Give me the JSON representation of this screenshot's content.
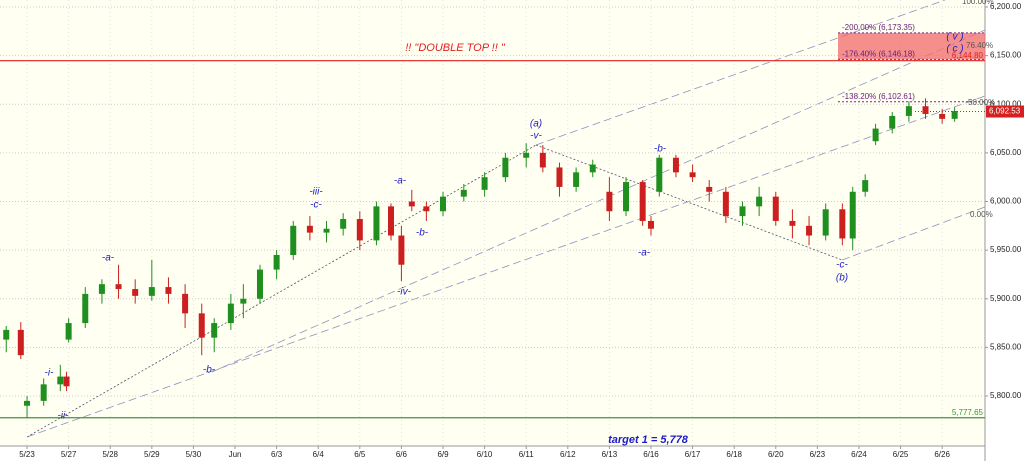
{
  "chart_data": {
    "type": "candlestick",
    "x": [
      -0.5,
      -0.15,
      0.0,
      0.4,
      0.8,
      0.95,
      1.0,
      1.4,
      1.8,
      2.2,
      2.6,
      3.0,
      3.4,
      3.8,
      4.2,
      4.5,
      4.9,
      5.2,
      5.6,
      6.0,
      6.4,
      6.8,
      7.2,
      7.6,
      8.0,
      8.4,
      8.75,
      9.0,
      9.25,
      9.6,
      10.0,
      10.5,
      11.0,
      11.5,
      12.0,
      12.4,
      12.8,
      13.2,
      13.6,
      14.0,
      14.4,
      14.8,
      15.0,
      15.2,
      15.6,
      16.0,
      16.4,
      16.8,
      17.2,
      17.6,
      18.0,
      18.4,
      18.8,
      19.2,
      19.6,
      19.85,
      20.15,
      20.4,
      20.8,
      21.2,
      21.6,
      22.0,
      22.3
    ],
    "open": [
      5858,
      5868,
      5790,
      5795,
      5812,
      5820,
      5858,
      5875,
      5905,
      5915,
      5910,
      5903,
      5912,
      5905,
      5885,
      5860,
      5875,
      5895,
      5900,
      5930,
      5945,
      5975,
      5968,
      5972,
      5982,
      5960,
      5995,
      5965,
      6000,
      5995,
      5990,
      6005,
      6012,
      6025,
      6045,
      6050,
      6035,
      6015,
      6030,
      6010,
      5990,
      6020,
      5980,
      6010,
      6045,
      6030,
      6015,
      6010,
      5985,
      5995,
      6005,
      5980,
      5975,
      5965,
      5992,
      5962,
      6010,
      6062,
      6075,
      6088,
      6098,
      6090,
      6085
    ],
    "high": [
      5872,
      5876,
      5800,
      5818,
      5832,
      5825,
      5880,
      5912,
      5920,
      5935,
      5920,
      5940,
      5922,
      5915,
      5895,
      5880,
      5905,
      5915,
      5935,
      5950,
      5980,
      5985,
      5980,
      5988,
      5990,
      6000,
      5998,
      5975,
      6012,
      6000,
      6010,
      6018,
      6030,
      6050,
      6060,
      6058,
      6040,
      6035,
      6043,
      6025,
      6025,
      6022,
      5985,
      6048,
      6048,
      6038,
      6022,
      6015,
      6000,
      6015,
      6010,
      5992,
      5985,
      5998,
      5998,
      6015,
      6028,
      6080,
      6092,
      6103,
      6106,
      6095,
      6097
    ],
    "low": [
      5845,
      5838,
      5777,
      5790,
      5805,
      5805,
      5855,
      5870,
      5895,
      5900,
      5895,
      5898,
      5895,
      5870,
      5842,
      5845,
      5868,
      5880,
      5895,
      5920,
      5940,
      5960,
      5958,
      5965,
      5950,
      5955,
      5960,
      5918,
      5990,
      5980,
      5985,
      6000,
      6005,
      6020,
      6035,
      6030,
      6005,
      6010,
      6025,
      5980,
      5985,
      5975,
      5965,
      6005,
      6025,
      6020,
      6000,
      5978,
      5975,
      5985,
      5975,
      5962,
      5955,
      5960,
      5955,
      5950,
      6005,
      6058,
      6070,
      6082,
      6085,
      6080,
      6082
    ],
    "close": [
      5868,
      5842,
      5795,
      5812,
      5820,
      5810,
      5875,
      5905,
      5915,
      5910,
      5903,
      5912,
      5905,
      5885,
      5860,
      5875,
      5895,
      5900,
      5930,
      5945,
      5975,
      5968,
      5972,
      5982,
      5960,
      5995,
      5965,
      5935,
      5995,
      5990,
      6005,
      6012,
      6025,
      6045,
      6050,
      6035,
      6015,
      6030,
      6038,
      5990,
      6020,
      5980,
      5972,
      6045,
      6030,
      6025,
      6010,
      5985,
      5995,
      6005,
      5980,
      5975,
      5965,
      5992,
      5962,
      6010,
      6022,
      6075,
      6088,
      6098,
      6090,
      6085,
      6093
    ],
    "up_color": "#1f8f1f",
    "down_color": "#cc2020",
    "xlim": [
      -0.65,
      23.03
    ],
    "ylim": [
      5748.6,
      6207.2
    ],
    "xticks": [
      {
        "value": 0,
        "label": "5/23"
      },
      {
        "value": 1,
        "label": "5/27"
      },
      {
        "value": 2,
        "label": "5/28"
      },
      {
        "value": 3,
        "label": "5/29"
      },
      {
        "value": 4,
        "label": "5/30"
      },
      {
        "value": 5,
        "label": "Jun"
      },
      {
        "value": 6,
        "label": "6/3"
      },
      {
        "value": 7,
        "label": "6/4"
      },
      {
        "value": 8,
        "label": "6/5"
      },
      {
        "value": 9,
        "label": "6/6"
      },
      {
        "value": 10,
        "label": "6/9"
      },
      {
        "value": 11,
        "label": "6/10"
      },
      {
        "value": 12,
        "label": "6/11"
      },
      {
        "value": 13,
        "label": "6/12"
      },
      {
        "value": 14,
        "label": "6/13"
      },
      {
        "value": 15,
        "label": "6/16"
      },
      {
        "value": 16,
        "label": "6/17"
      },
      {
        "value": 17,
        "label": "6/18"
      },
      {
        "value": 18,
        "label": "6/20"
      },
      {
        "value": 19,
        "label": "6/23"
      },
      {
        "value": 20,
        "label": "6/24"
      },
      {
        "value": 21,
        "label": "6/25"
      },
      {
        "value": 22,
        "label": "6/26"
      }
    ],
    "yticks": [
      {
        "value": 5800,
        "label": "5,800.00"
      },
      {
        "value": 5850,
        "label": "5,850.00"
      },
      {
        "value": 5900,
        "label": "5,900.00"
      },
      {
        "value": 5950,
        "label": "5,950.00"
      },
      {
        "value": 6000,
        "label": "6,000.00"
      },
      {
        "value": 6050,
        "label": "6,050.00"
      },
      {
        "value": 6100,
        "label": "6,100.00"
      },
      {
        "value": 6150,
        "label": "6,150.00"
      },
      {
        "value": 6200,
        "label": "6,200.00"
      }
    ],
    "grid": true,
    "last_price": {
      "value": 6092.53,
      "label": "6,092.53"
    },
    "levels": [
      {
        "value": 6144.8,
        "label": "6,144.80",
        "color": "#e02020"
      },
      {
        "value": 5777.65,
        "label": "5,777.65",
        "color": "#3a9a3a"
      }
    ],
    "fib_levels": [
      {
        "value": 6173.35,
        "label": "-200.00% (6,173.35)"
      },
      {
        "value": 6146.18,
        "label": "-176.40% (6,146.18)"
      },
      {
        "value": 6102.61,
        "label": "-138.20% (6,102.61)"
      }
    ],
    "channel_labels": [
      "100.00%",
      "76.40%",
      "50.00%",
      "0.00%"
    ],
    "annotations": [
      "!! \"DOUBLE TOP !! \"",
      "target 1 = 5,778"
    ],
    "wave_labels": [
      "-i-",
      "-ii-",
      "-a-",
      "-b-",
      "-iii-",
      "-c-",
      "-a-",
      "-b-",
      "-iv-",
      "(a)",
      "-v-",
      "-b-",
      "-a-",
      "-c-",
      "(b)",
      "( v )",
      "( c )"
    ]
  }
}
